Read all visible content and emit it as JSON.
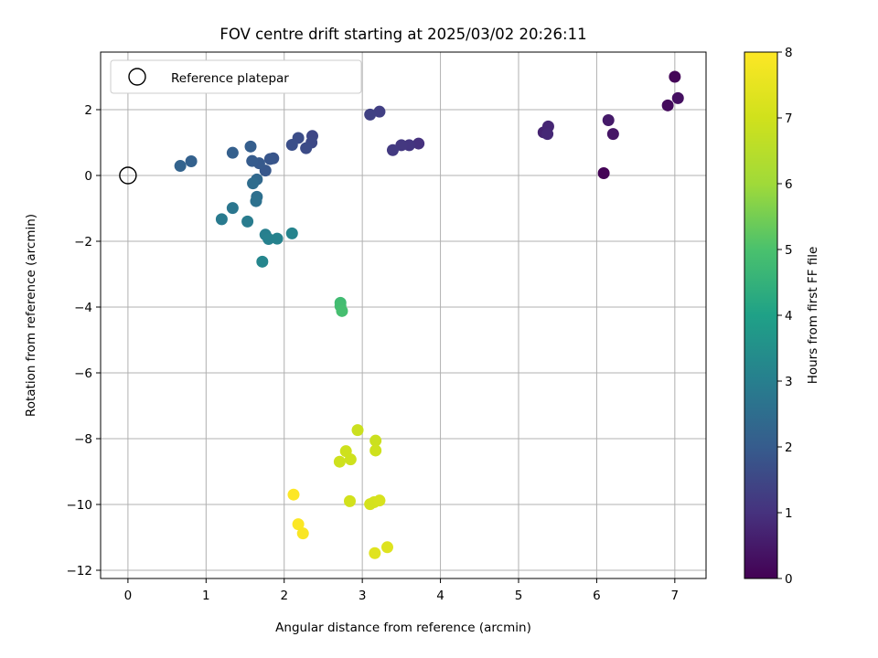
{
  "chart_data": {
    "type": "scatter",
    "title": "FOV centre drift starting at 2025/03/02 20:26:11",
    "xlabel": "Angular distance from reference (arcmin)",
    "ylabel": "Rotation from reference (arcmin)",
    "xlim": [
      -0.35,
      7.4
    ],
    "ylim": [
      -12.25,
      3.75
    ],
    "xticks": [
      0,
      1,
      2,
      3,
      4,
      5,
      6,
      7
    ],
    "yticks": [
      -12,
      -10,
      -8,
      -6,
      -4,
      -2,
      0,
      2
    ],
    "grid": true,
    "legend": {
      "placement": "top-left",
      "entries": [
        "Reference platepar"
      ]
    },
    "reference_point": {
      "x": 0,
      "y": 0
    },
    "colorbar": {
      "label": "Hours from first FF file",
      "colormap": "viridis",
      "range": [
        0,
        8
      ],
      "ticks": [
        0,
        1,
        2,
        3,
        4,
        5,
        6,
        7,
        8
      ]
    },
    "points": [
      {
        "x": 6.09,
        "y": 0.07,
        "c": 0.05
      },
      {
        "x": 7.0,
        "y": 3.0,
        "c": 0.1
      },
      {
        "x": 6.91,
        "y": 2.13,
        "c": 0.2
      },
      {
        "x": 7.04,
        "y": 2.35,
        "c": 0.3
      },
      {
        "x": 6.21,
        "y": 1.26,
        "c": 0.4
      },
      {
        "x": 6.15,
        "y": 1.68,
        "c": 0.5
      },
      {
        "x": 5.32,
        "y": 1.31,
        "c": 0.7
      },
      {
        "x": 5.38,
        "y": 1.49,
        "c": 0.75
      },
      {
        "x": 5.37,
        "y": 1.26,
        "c": 0.8
      },
      {
        "x": 3.72,
        "y": 0.97,
        "c": 1.0
      },
      {
        "x": 3.6,
        "y": 0.92,
        "c": 1.1
      },
      {
        "x": 3.5,
        "y": 0.92,
        "c": 1.15
      },
      {
        "x": 3.39,
        "y": 0.77,
        "c": 1.2
      },
      {
        "x": 3.22,
        "y": 1.94,
        "c": 1.3
      },
      {
        "x": 3.1,
        "y": 1.85,
        "c": 1.35
      },
      {
        "x": 2.36,
        "y": 1.2,
        "c": 1.5
      },
      {
        "x": 2.35,
        "y": 1.0,
        "c": 1.55
      },
      {
        "x": 2.28,
        "y": 0.83,
        "c": 1.6
      },
      {
        "x": 2.18,
        "y": 1.14,
        "c": 1.65
      },
      {
        "x": 2.1,
        "y": 0.93,
        "c": 1.7
      },
      {
        "x": 1.86,
        "y": 0.52,
        "c": 1.8
      },
      {
        "x": 1.82,
        "y": 0.5,
        "c": 1.85
      },
      {
        "x": 1.76,
        "y": 0.15,
        "c": 1.9
      },
      {
        "x": 1.68,
        "y": 0.37,
        "c": 1.95
      },
      {
        "x": 1.59,
        "y": 0.44,
        "c": 2.0
      },
      {
        "x": 1.57,
        "y": 0.88,
        "c": 2.05
      },
      {
        "x": 1.34,
        "y": 0.69,
        "c": 2.1
      },
      {
        "x": 0.81,
        "y": 0.43,
        "c": 2.15
      },
      {
        "x": 0.67,
        "y": 0.29,
        "c": 2.2
      },
      {
        "x": 1.65,
        "y": -0.12,
        "c": 2.35
      },
      {
        "x": 1.6,
        "y": -0.24,
        "c": 2.45
      },
      {
        "x": 1.65,
        "y": -0.65,
        "c": 2.55
      },
      {
        "x": 1.64,
        "y": -0.78,
        "c": 2.6
      },
      {
        "x": 1.34,
        "y": -0.99,
        "c": 2.75
      },
      {
        "x": 1.2,
        "y": -1.33,
        "c": 2.85
      },
      {
        "x": 1.53,
        "y": -1.4,
        "c": 2.9
      },
      {
        "x": 1.76,
        "y": -1.8,
        "c": 3.0
      },
      {
        "x": 1.8,
        "y": -1.93,
        "c": 3.05
      },
      {
        "x": 1.91,
        "y": -1.92,
        "c": 3.1
      },
      {
        "x": 2.1,
        "y": -1.76,
        "c": 3.15
      },
      {
        "x": 1.72,
        "y": -2.62,
        "c": 3.2
      },
      {
        "x": 2.72,
        "y": -3.87,
        "c": 4.8
      },
      {
        "x": 2.72,
        "y": -3.97,
        "c": 4.85
      },
      {
        "x": 2.74,
        "y": -4.12,
        "c": 4.9
      },
      {
        "x": 2.94,
        "y": -7.74,
        "c": 6.9
      },
      {
        "x": 3.17,
        "y": -8.06,
        "c": 6.9
      },
      {
        "x": 3.17,
        "y": -8.36,
        "c": 6.95
      },
      {
        "x": 2.79,
        "y": -8.38,
        "c": 6.95
      },
      {
        "x": 2.85,
        "y": -8.63,
        "c": 6.95
      },
      {
        "x": 2.71,
        "y": -8.7,
        "c": 6.95
      },
      {
        "x": 2.84,
        "y": -9.9,
        "c": 7.05
      },
      {
        "x": 3.1,
        "y": -9.99,
        "c": 7.1
      },
      {
        "x": 3.15,
        "y": -9.93,
        "c": 7.1
      },
      {
        "x": 3.22,
        "y": -9.88,
        "c": 7.15
      },
      {
        "x": 3.32,
        "y": -11.3,
        "c": 7.3
      },
      {
        "x": 3.16,
        "y": -11.48,
        "c": 7.35
      },
      {
        "x": 2.12,
        "y": -9.7,
        "c": 8.0
      },
      {
        "x": 2.18,
        "y": -10.6,
        "c": 7.95
      },
      {
        "x": 2.24,
        "y": -10.88,
        "c": 7.9
      }
    ]
  }
}
